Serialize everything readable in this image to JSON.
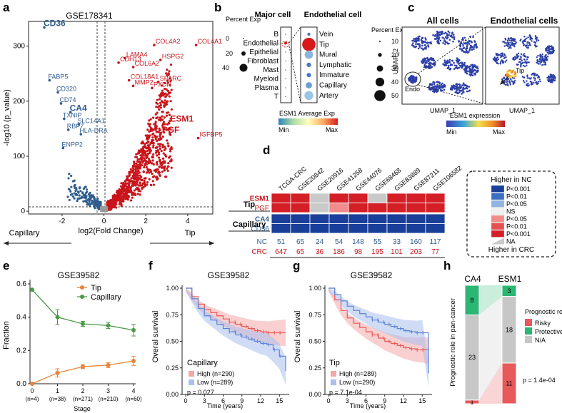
{
  "panel_letters": {
    "a": "a",
    "b": "b",
    "c": "c",
    "d": "d",
    "e": "e",
    "f": "f",
    "g": "g",
    "h": "h"
  },
  "colors": {
    "capillary_blue": "#2f5d8e",
    "tip_red": "#c8151b",
    "tip_orange": "#e8833a",
    "cap_green": "#4c9a47",
    "risky": "#e8595a",
    "protective": "#2bb673",
    "na": "#c7c7c7"
  },
  "chart_data": [
    {
      "id": "a",
      "type": "scatter",
      "title": "GSE178341",
      "xlabel": "log2(Fold Change)",
      "ylabel": "-log10 (p_value)",
      "xlim": [
        -3.6,
        5.2
      ],
      "ylim": [
        -5,
        345
      ],
      "xticks": [
        -2,
        0,
        2,
        4
      ],
      "yticks": [
        0,
        100,
        200,
        300
      ],
      "arrow_left": "Capillary",
      "arrow_right": "Tip",
      "blue_genes": [
        {
          "label": "CD36",
          "x": -2.85,
          "y": 334,
          "bold": true
        },
        {
          "label": "FABP5",
          "x": -2.6,
          "y": 238,
          "bold": false
        },
        {
          "label": "CD320",
          "x": -2.2,
          "y": 216,
          "bold": false
        },
        {
          "label": "CD74",
          "x": -2.05,
          "y": 196,
          "bold": false
        },
        {
          "label": "CA4",
          "x": -1.6,
          "y": 180,
          "bold": true
        },
        {
          "label": "TXNIP",
          "x": -1.9,
          "y": 168,
          "bold": false
        },
        {
          "label": "SLC14A1",
          "x": -1.2,
          "y": 158,
          "bold": false
        },
        {
          "label": "RBP7",
          "x": -1.7,
          "y": 148,
          "bold": false
        },
        {
          "label": "HLA-DRA",
          "x": -1.1,
          "y": 140,
          "bold": false
        },
        {
          "label": "ENPP2",
          "x": -1.95,
          "y": 115,
          "bold": false
        }
      ],
      "red_genes": [
        {
          "label": "LAMA4",
          "x": 1.0,
          "y": 278,
          "bold": false
        },
        {
          "label": "COL4A2",
          "x": 2.4,
          "y": 302,
          "bold": false
        },
        {
          "label": "COL4A1",
          "x": 4.4,
          "y": 302,
          "bold": false
        },
        {
          "label": "CDH13",
          "x": 0.7,
          "y": 270,
          "bold": false
        },
        {
          "label": "HSPG2",
          "x": 2.7,
          "y": 275,
          "bold": false
        },
        {
          "label": "COL6A2",
          "x": 1.4,
          "y": 262,
          "bold": false
        },
        {
          "label": "COL18A1",
          "x": 1.2,
          "y": 238,
          "bold": false
        },
        {
          "label": "SPARC",
          "x": 2.6,
          "y": 235,
          "bold": false
        },
        {
          "label": "MMP2",
          "x": 1.4,
          "y": 228,
          "bold": false
        },
        {
          "label": "PXDN",
          "x": 2.3,
          "y": 224,
          "bold": false
        },
        {
          "label": "ESM1",
          "x": 3.1,
          "y": 160,
          "bold": true
        },
        {
          "label": "PGF",
          "x": 2.7,
          "y": 140,
          "bold": true
        },
        {
          "label": "IGFBP5",
          "x": 4.5,
          "y": 133,
          "bold": false
        }
      ]
    },
    {
      "id": "e",
      "type": "line",
      "title": "GSE39582",
      "xlabel": "Stage",
      "ylabel": "Fraction",
      "ylim": [
        0,
        0.6
      ],
      "yticks": [
        0.0,
        0.2,
        0.4,
        0.6
      ],
      "ytick_labels": [
        "0.0",
        "0.2",
        "0.4",
        "0.6"
      ],
      "categories": [
        "0",
        "1",
        "2",
        "3",
        "4"
      ],
      "n_labels": [
        "(n=4)",
        "(n=38)",
        "(n=271)",
        "(n=210)",
        "(n=60)"
      ],
      "series": [
        {
          "name": "Tip",
          "color": "#e8833a",
          "values": [
            0.0,
            0.065,
            0.103,
            0.112,
            0.137
          ],
          "err": [
            0.0,
            0.025,
            0.012,
            0.015,
            0.027
          ]
        },
        {
          "name": "Capillary",
          "color": "#4c9a47",
          "values": [
            0.565,
            0.4,
            0.36,
            0.35,
            0.322
          ],
          "err": [
            0.0,
            0.045,
            0.015,
            0.018,
            0.035
          ]
        }
      ]
    },
    {
      "id": "f",
      "type": "line",
      "title": "GSE39582",
      "xlabel": "Time (years)",
      "ylabel": "Overal survival",
      "xticks": [
        0,
        3,
        6,
        9,
        12,
        15
      ],
      "yticks": [
        0.0,
        0.25,
        0.5,
        0.75,
        1.0
      ],
      "ytick_labels": [
        "0.00",
        "0.25",
        "0.50",
        "0.75",
        "1.00"
      ],
      "legend_title": "Capillary",
      "pvalue": "p = 0.027",
      "series": [
        {
          "name": "High (n=290)",
          "color": "#e8595a",
          "x": [
            0,
            1,
            2,
            3,
            4,
            5,
            6,
            7,
            8,
            9,
            10,
            11,
            12,
            13,
            14,
            15,
            16
          ],
          "y": [
            1.0,
            0.92,
            0.85,
            0.8,
            0.77,
            0.74,
            0.71,
            0.68,
            0.66,
            0.64,
            0.62,
            0.6,
            0.59,
            0.58,
            0.58,
            0.58,
            0.58
          ]
        },
        {
          "name": "Low (n=289)",
          "color": "#5b84d6",
          "x": [
            0,
            1,
            2,
            3,
            4,
            5,
            6,
            7,
            8,
            9,
            10,
            11,
            12,
            13,
            14,
            15,
            16
          ],
          "y": [
            1.0,
            0.9,
            0.81,
            0.74,
            0.7,
            0.66,
            0.62,
            0.59,
            0.56,
            0.54,
            0.52,
            0.5,
            0.48,
            0.47,
            0.42,
            0.36,
            0.22
          ]
        }
      ]
    },
    {
      "id": "g",
      "type": "line",
      "title": "GSE39582",
      "xlabel": "Time (years)",
      "ylabel": "Overal survival",
      "xticks": [
        0,
        3,
        6,
        9,
        12,
        15
      ],
      "yticks": [
        0.0,
        0.25,
        0.5,
        0.75,
        1.0
      ],
      "ytick_labels": [
        "0.00",
        "0.25",
        "0.50",
        "0.75",
        "1.00"
      ],
      "legend_title": "Tip",
      "pvalue": "p = 7.1e-04",
      "series": [
        {
          "name": "High (n=289)",
          "color": "#e8595a",
          "x": [
            0,
            1,
            2,
            3,
            4,
            5,
            6,
            7,
            8,
            9,
            10,
            11,
            12,
            13,
            14,
            15,
            16
          ],
          "y": [
            1.0,
            0.89,
            0.79,
            0.72,
            0.67,
            0.63,
            0.59,
            0.56,
            0.53,
            0.5,
            0.48,
            0.46,
            0.44,
            0.43,
            0.42,
            0.42,
            0.41
          ]
        },
        {
          "name": "Low (n=290)",
          "color": "#5b84d6",
          "x": [
            0,
            1,
            2,
            3,
            4,
            5,
            6,
            7,
            8,
            9,
            10,
            11,
            12,
            13,
            14,
            15,
            16
          ],
          "y": [
            1.0,
            0.94,
            0.88,
            0.83,
            0.79,
            0.76,
            0.73,
            0.7,
            0.68,
            0.66,
            0.64,
            0.62,
            0.6,
            0.59,
            0.58,
            0.58,
            0.2
          ]
        }
      ]
    },
    {
      "id": "h",
      "type": "bar",
      "title": "",
      "ylabel": "Prognostic role in pan-cancer",
      "categories": [
        "CA4",
        "ESM1"
      ],
      "series": [
        {
          "name": "Risky",
          "color": "#e8595a",
          "values": [
            1,
            11
          ]
        },
        {
          "name": "N/A",
          "color": "#c7c7c7",
          "values": [
            23,
            18
          ]
        },
        {
          "name": "Protective",
          "color": "#2bb673",
          "values": [
            8,
            3
          ]
        }
      ],
      "legend_title": "Prognostic role",
      "pvalue": "p = 1.4e-04"
    }
  ],
  "panel_b": {
    "percent_exp_title": "Percent Exp",
    "percent_left": [
      "0",
      "20",
      "40"
    ],
    "major_title": "Major cell",
    "major_cells": [
      "B",
      "Endothelial",
      "Epithelial",
      "Fibroblast",
      "Mast",
      "Myeloid",
      "Plasma",
      "T"
    ],
    "endo_title": "Endothelial cell",
    "endo_cells": [
      "Vein",
      "Tip",
      "Mural",
      "Lymphatic",
      "Immature",
      "Capillary",
      "Artery"
    ],
    "endo_sizes": [
      1,
      18,
      7,
      2,
      2,
      4,
      8
    ],
    "endo_colors": [
      "#4a78c4",
      "#d7191c",
      "#8ab5dc",
      "#4a78c4",
      "#4a78c4",
      "#6b9fd4",
      "#9cc4e4"
    ],
    "percent_right_title": "Percent Exp",
    "percent_right": [
      "10",
      "20",
      "30",
      "40",
      "50"
    ],
    "colorbar_title": "ESM1 Average Exp",
    "colorbar_min": "Min",
    "colorbar_max": "Max"
  },
  "panel_c": {
    "all_title": "All cells",
    "endo_title": "Endothelial cells",
    "y_label": "UMAP_2",
    "x_label_1": "UMAP_1",
    "x_label_2": "UMAP_1",
    "endo_label": "Endo",
    "tip_label": "Tip",
    "colorbar_title": "ESM1 expression",
    "colorbar_min": "Min",
    "colorbar_max": "Max"
  },
  "panel_d": {
    "columns": [
      "TCGA-CRC",
      "GSE20842",
      "GSE20916",
      "GSE41258",
      "GSE44076",
      "GSE68468",
      "GSE83889",
      "GSE87211",
      "GSE106582"
    ],
    "group_tip": "Tip",
    "group_cap": "Capillary",
    "rows": [
      {
        "gene": "ESM1",
        "color": "#c8151b",
        "cells": [
          "c7",
          "c7",
          "na",
          "c7",
          "c7",
          "na",
          "c7",
          "c7",
          "c7"
        ]
      },
      {
        "gene": "PGF",
        "color": "#c8151b",
        "cells": [
          "c7",
          "c7",
          "na",
          "c5",
          "c7",
          "c7",
          "c7",
          "c7",
          "c7"
        ]
      },
      {
        "gene": "CA4",
        "color": "#2f5d8e",
        "cells": [
          "b1",
          "b1",
          "b1",
          "b1",
          "b1",
          "b1",
          "b1",
          "b1",
          "b1"
        ]
      },
      {
        "gene": "CD36",
        "color": "#2f5d8e",
        "cells": [
          "b1",
          "b1",
          "b1",
          "b1",
          "b1",
          "b1",
          "b1",
          "b1",
          "b1"
        ]
      }
    ],
    "nc_label": "NC",
    "crc_label": "CRC",
    "nc_counts": [
      "51",
      "65",
      "24",
      "54",
      "148",
      "55",
      "33",
      "160",
      "117"
    ],
    "crc_counts": [
      "647",
      "65",
      "36",
      "186",
      "98",
      "195",
      "101",
      "203",
      "77"
    ],
    "legend_top": "Higher in NC",
    "legend_bottom": "Higher in CRC",
    "legend_items": [
      {
        "key": "b1",
        "label": "P<0.001",
        "color": "#1a3f9a"
      },
      {
        "key": "b2",
        "label": "P<0.01",
        "color": "#3b6fc4"
      },
      {
        "key": "b3",
        "label": "P<0.05",
        "color": "#8fb4e0"
      },
      {
        "key": "ns",
        "label": "NS",
        "color": "#f1f1f1"
      },
      {
        "key": "c5",
        "label": "P<0.05",
        "color": "#f28b8b"
      },
      {
        "key": "c6",
        "label": "P<0.01",
        "color": "#e4504f"
      },
      {
        "key": "c7",
        "label": "P<0.001",
        "color": "#d51f26"
      },
      {
        "key": "na",
        "label": "NA",
        "color": "#c9c9c9"
      }
    ]
  }
}
